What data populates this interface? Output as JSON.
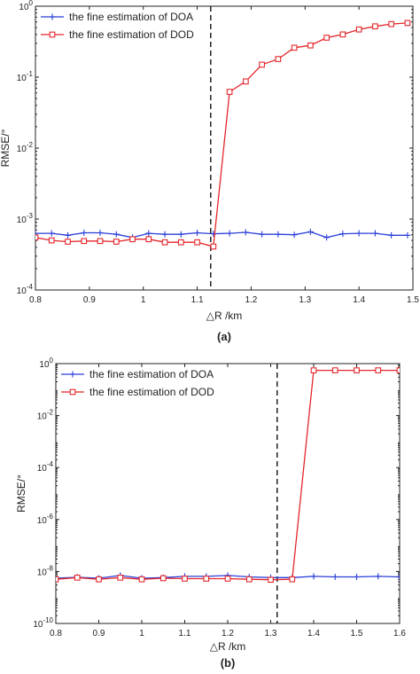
{
  "chart_data": [
    {
      "type": "line",
      "panel_label": "(a)",
      "xlabel": "△R /km",
      "ylabel": "RMSE/°",
      "xlim": [
        0.8,
        1.5
      ],
      "ylim": [
        0.0001,
        1
      ],
      "yscale": "log",
      "x_ticks": [
        0.8,
        0.9,
        1,
        1.1,
        1.2,
        1.3,
        1.4,
        1.5
      ],
      "x_tick_labels": [
        "0.8",
        "0.9",
        "1",
        "1.1",
        "1.2",
        "1.3",
        "1.4",
        "1.5"
      ],
      "y_ticks": [
        0.0001,
        0.001,
        0.01,
        0.1,
        1
      ],
      "y_tick_bases": [
        "10",
        "10",
        "10",
        "10",
        "10"
      ],
      "y_tick_exponents": [
        "-4",
        "-3",
        "-2",
        "-1",
        "0"
      ],
      "vline_x": 1.125,
      "legend_position": "top-left",
      "grid": false,
      "x": [
        0.8,
        0.83,
        0.86,
        0.89,
        0.92,
        0.95,
        0.98,
        1.01,
        1.04,
        1.07,
        1.1,
        1.13,
        1.16,
        1.19,
        1.22,
        1.25,
        1.28,
        1.31,
        1.34,
        1.37,
        1.4,
        1.43,
        1.46,
        1.49
      ],
      "series": [
        {
          "name": "the fine estimation of DOA",
          "color": "#2b3fd9",
          "marker": "plus",
          "values": [
            0.00063,
            0.00063,
            0.00059,
            0.00064,
            0.00064,
            0.00061,
            0.00055,
            0.00063,
            0.00061,
            0.00061,
            0.00064,
            0.00062,
            0.00063,
            0.00065,
            0.00061,
            0.00061,
            0.0006,
            0.00066,
            0.00055,
            0.00062,
            0.00063,
            0.00063,
            0.00059,
            0.00059
          ]
        },
        {
          "name": "the fine estimation of DOD",
          "color": "#e3262b",
          "marker": "square",
          "values": [
            0.00055,
            0.0005,
            0.00048,
            0.00049,
            0.00049,
            0.00048,
            0.00052,
            0.00052,
            0.00047,
            0.00047,
            0.00047,
            0.00041,
            0.062,
            0.087,
            0.15,
            0.18,
            0.26,
            0.28,
            0.36,
            0.4,
            0.47,
            0.52,
            0.56,
            0.58
          ]
        }
      ]
    },
    {
      "type": "line",
      "panel_label": "(b)",
      "xlabel": "△R /km",
      "ylabel": "RMSE/°",
      "xlim": [
        0.8,
        1.6
      ],
      "ylim": [
        1e-10,
        1
      ],
      "yscale": "log",
      "x_ticks": [
        0.8,
        0.9,
        1,
        1.1,
        1.2,
        1.3,
        1.4,
        1.5,
        1.6
      ],
      "x_tick_labels": [
        "0.8",
        "0.9",
        "1",
        "1.1",
        "1.2",
        "1.3",
        "1.4",
        "1.5",
        "1.6"
      ],
      "y_ticks": [
        1e-10,
        1e-08,
        1e-06,
        0.0001,
        0.01,
        1
      ],
      "y_tick_bases": [
        "10",
        "10",
        "10",
        "10",
        "10",
        "10"
      ],
      "y_tick_exponents": [
        "-10",
        "-8",
        "-6",
        "-4",
        "-2",
        "0"
      ],
      "vline_x": 1.315,
      "legend_position": "top-left",
      "grid": false,
      "x": [
        0.8,
        0.85,
        0.9,
        0.95,
        1.0,
        1.05,
        1.1,
        1.15,
        1.2,
        1.25,
        1.3,
        1.35,
        1.4,
        1.45,
        1.5,
        1.55,
        1.6
      ],
      "series": [
        {
          "name": "the fine estimation of DOA",
          "color": "#2b3fd9",
          "marker": "plus",
          "values": [
            5.5e-09,
            6e-09,
            5.5e-09,
            7e-09,
            5.5e-09,
            5.8e-09,
            6.5e-09,
            6.5e-09,
            7e-09,
            6.2e-09,
            5.8e-09,
            5.8e-09,
            6.5e-09,
            6.2e-09,
            6.2e-09,
            6.5e-09,
            6.2e-09
          ]
        },
        {
          "name": "the fine estimation of DOD",
          "color": "#e3262b",
          "marker": "square",
          "values": [
            5e-09,
            5.8e-09,
            5e-09,
            5.8e-09,
            5e-09,
            5.5e-09,
            5.3e-09,
            5.3e-09,
            5.3e-09,
            5e-09,
            4.8e-09,
            5e-09,
            0.55,
            0.55,
            0.55,
            0.55,
            0.55
          ]
        }
      ]
    }
  ]
}
